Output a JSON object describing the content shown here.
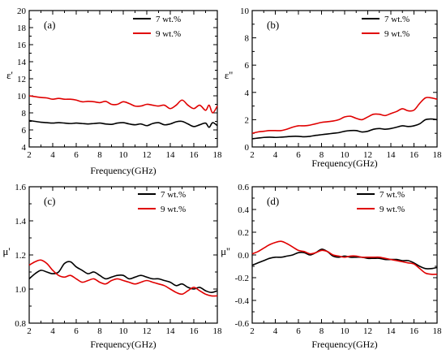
{
  "chart_data": [
    {
      "type": "line",
      "panel_label": "(a)",
      "ylabel": "ε'",
      "xlabel": "Frequency(GHz)",
      "xlim": [
        2,
        18
      ],
      "ylim": [
        4,
        20
      ],
      "xticks": [
        2,
        4,
        6,
        8,
        10,
        12,
        14,
        16,
        18
      ],
      "yticks": [
        4,
        6,
        8,
        10,
        12,
        14,
        16,
        18,
        20
      ],
      "legend_position": "top-right",
      "series": [
        {
          "name": "7 wt.%",
          "color": "#000000",
          "x": [
            2,
            2.5,
            3,
            3.5,
            4,
            4.5,
            5,
            5.5,
            6,
            6.5,
            7,
            7.5,
            8,
            8.5,
            9,
            9.5,
            10,
            10.5,
            11,
            11.5,
            12,
            12.5,
            13,
            13.5,
            14,
            14.5,
            15,
            15.5,
            16,
            16.5,
            17,
            17.3,
            17.6,
            18
          ],
          "y": [
            7.1,
            7.0,
            6.9,
            6.85,
            6.8,
            6.85,
            6.8,
            6.75,
            6.8,
            6.75,
            6.7,
            6.75,
            6.8,
            6.7,
            6.65,
            6.8,
            6.85,
            6.7,
            6.6,
            6.7,
            6.5,
            6.75,
            6.85,
            6.6,
            6.7,
            6.95,
            7.0,
            6.7,
            6.4,
            6.6,
            6.8,
            6.3,
            6.85,
            6.5
          ]
        },
        {
          "name": "9 wt.%",
          "color": "#e00000",
          "x": [
            2,
            2.5,
            3,
            3.5,
            4,
            4.5,
            5,
            5.5,
            6,
            6.5,
            7,
            7.5,
            8,
            8.5,
            9,
            9.5,
            10,
            10.5,
            11,
            11.5,
            12,
            12.5,
            13,
            13.5,
            14,
            14.5,
            15,
            15.5,
            16,
            16.5,
            17,
            17.3,
            17.6,
            18
          ],
          "y": [
            10.0,
            9.9,
            9.8,
            9.75,
            9.6,
            9.7,
            9.6,
            9.6,
            9.5,
            9.3,
            9.35,
            9.3,
            9.2,
            9.35,
            9.0,
            9.0,
            9.3,
            9.1,
            8.8,
            8.8,
            9.0,
            8.9,
            8.8,
            8.9,
            8.5,
            8.9,
            9.5,
            8.9,
            8.5,
            8.9,
            8.3,
            8.9,
            8.0,
            8.8
          ]
        }
      ]
    },
    {
      "type": "line",
      "panel_label": "(b)",
      "ylabel": "ε''",
      "xlabel": "Frequency(GHz)",
      "xlim": [
        2,
        18
      ],
      "ylim": [
        0,
        10
      ],
      "xticks": [
        2,
        4,
        6,
        8,
        10,
        12,
        14,
        16,
        18
      ],
      "yticks": [
        0,
        2,
        4,
        6,
        8,
        10
      ],
      "legend_position": "top-right",
      "series": [
        {
          "name": "7 wt.%",
          "color": "#000000",
          "x": [
            2,
            2.5,
            3,
            3.5,
            4,
            4.5,
            5,
            5.5,
            6,
            6.5,
            7,
            7.5,
            8,
            8.5,
            9,
            9.5,
            10,
            10.5,
            11,
            11.5,
            12,
            12.5,
            13,
            13.5,
            14,
            14.5,
            15,
            15.5,
            16,
            16.5,
            17,
            17.5,
            18
          ],
          "y": [
            0.6,
            0.65,
            0.7,
            0.72,
            0.7,
            0.72,
            0.75,
            0.78,
            0.78,
            0.75,
            0.78,
            0.85,
            0.9,
            0.95,
            1.0,
            1.05,
            1.15,
            1.2,
            1.2,
            1.1,
            1.15,
            1.3,
            1.35,
            1.3,
            1.35,
            1.45,
            1.55,
            1.5,
            1.55,
            1.7,
            2.0,
            2.05,
            2.0
          ]
        },
        {
          "name": "9 wt.%",
          "color": "#e00000",
          "x": [
            2,
            2.5,
            3,
            3.5,
            4,
            4.5,
            5,
            5.5,
            6,
            6.5,
            7,
            7.5,
            8,
            8.5,
            9,
            9.5,
            10,
            10.5,
            11,
            11.5,
            12,
            12.5,
            13,
            13.5,
            14,
            14.5,
            15,
            15.5,
            16,
            16.5,
            17,
            17.5,
            18
          ],
          "y": [
            1.0,
            1.1,
            1.15,
            1.2,
            1.2,
            1.2,
            1.3,
            1.45,
            1.55,
            1.55,
            1.6,
            1.7,
            1.8,
            1.85,
            1.9,
            2.0,
            2.2,
            2.25,
            2.1,
            2.0,
            2.2,
            2.4,
            2.4,
            2.3,
            2.45,
            2.6,
            2.8,
            2.65,
            2.7,
            3.2,
            3.6,
            3.6,
            3.5
          ]
        }
      ]
    },
    {
      "type": "line",
      "panel_label": "(c)",
      "ylabel": "μ'",
      "xlabel": "Frequency(GHz)",
      "xlim": [
        2,
        18
      ],
      "ylim": [
        0.8,
        1.6
      ],
      "xticks": [
        2,
        4,
        6,
        8,
        10,
        12,
        14,
        16,
        18
      ],
      "yticks": [
        0.8,
        1.0,
        1.2,
        1.4,
        1.6
      ],
      "legend_position": "top-right",
      "series": [
        {
          "name": "7 wt.%",
          "color": "#000000",
          "x": [
            2,
            2.5,
            3,
            3.5,
            4,
            4.5,
            5,
            5.5,
            6,
            6.5,
            7,
            7.5,
            8,
            8.5,
            9,
            9.5,
            10,
            10.5,
            11,
            11.5,
            12,
            12.5,
            13,
            13.5,
            14,
            14.5,
            15,
            15.5,
            16,
            16.5,
            17,
            17.5,
            18
          ],
          "y": [
            1.06,
            1.09,
            1.11,
            1.1,
            1.09,
            1.1,
            1.15,
            1.16,
            1.13,
            1.11,
            1.09,
            1.1,
            1.08,
            1.06,
            1.07,
            1.08,
            1.08,
            1.06,
            1.07,
            1.08,
            1.07,
            1.06,
            1.06,
            1.05,
            1.04,
            1.02,
            1.03,
            1.01,
            1.0,
            1.01,
            0.99,
            0.98,
            0.99
          ]
        },
        {
          "name": "9 wt.%",
          "color": "#e00000",
          "x": [
            2,
            2.5,
            3,
            3.5,
            4,
            4.5,
            5,
            5.5,
            6,
            6.5,
            7,
            7.5,
            8,
            8.5,
            9,
            9.5,
            10,
            10.5,
            11,
            11.5,
            12,
            12.5,
            13,
            13.5,
            14,
            14.5,
            15,
            15.5,
            16,
            16.5,
            17,
            17.5,
            18
          ],
          "y": [
            1.14,
            1.16,
            1.17,
            1.15,
            1.11,
            1.08,
            1.07,
            1.08,
            1.06,
            1.04,
            1.05,
            1.06,
            1.04,
            1.03,
            1.05,
            1.06,
            1.05,
            1.04,
            1.03,
            1.04,
            1.05,
            1.04,
            1.03,
            1.02,
            1.0,
            0.98,
            0.97,
            0.99,
            1.01,
            0.99,
            0.97,
            0.96,
            0.96
          ]
        }
      ]
    },
    {
      "type": "line",
      "panel_label": "(d)",
      "ylabel": "μ''",
      "xlabel": "Frequency(GHz)",
      "xlim": [
        2,
        18
      ],
      "ylim": [
        -0.6,
        0.6
      ],
      "xticks": [
        2,
        4,
        6,
        8,
        10,
        12,
        14,
        16,
        18
      ],
      "yticks": [
        -0.6,
        -0.4,
        -0.2,
        0.0,
        0.2,
        0.4,
        0.6
      ],
      "legend_position": "top-right",
      "series": [
        {
          "name": "7 wt.%",
          "color": "#000000",
          "x": [
            2,
            2.5,
            3,
            3.5,
            4,
            4.5,
            5,
            5.5,
            6,
            6.5,
            7,
            7.5,
            8,
            8.5,
            9,
            9.5,
            10,
            10.5,
            11,
            11.5,
            12,
            12.5,
            13,
            13.5,
            14,
            14.5,
            15,
            15.5,
            16,
            16.5,
            17,
            17.5,
            18
          ],
          "y": [
            -0.09,
            -0.07,
            -0.05,
            -0.03,
            -0.02,
            -0.02,
            -0.01,
            0.0,
            0.02,
            0.02,
            0.0,
            0.02,
            0.05,
            0.03,
            -0.01,
            -0.02,
            -0.01,
            -0.02,
            -0.02,
            -0.02,
            -0.03,
            -0.03,
            -0.03,
            -0.04,
            -0.04,
            -0.04,
            -0.05,
            -0.05,
            -0.07,
            -0.1,
            -0.12,
            -0.12,
            -0.11
          ]
        },
        {
          "name": "9 wt.%",
          "color": "#e00000",
          "x": [
            2,
            2.5,
            3,
            3.5,
            4,
            4.5,
            5,
            5.5,
            6,
            6.5,
            7,
            7.5,
            8,
            8.5,
            9,
            9.5,
            10,
            10.5,
            11,
            11.5,
            12,
            12.5,
            13,
            13.5,
            14,
            14.5,
            15,
            15.5,
            16,
            16.5,
            17,
            17.5,
            18
          ],
          "y": [
            0.01,
            0.03,
            0.06,
            0.09,
            0.11,
            0.12,
            0.1,
            0.07,
            0.04,
            0.03,
            0.01,
            0.02,
            0.04,
            0.03,
            0.0,
            -0.01,
            -0.02,
            -0.01,
            -0.01,
            -0.02,
            -0.02,
            -0.02,
            -0.02,
            -0.03,
            -0.04,
            -0.05,
            -0.06,
            -0.07,
            -0.08,
            -0.12,
            -0.16,
            -0.17,
            -0.17
          ]
        }
      ]
    }
  ]
}
